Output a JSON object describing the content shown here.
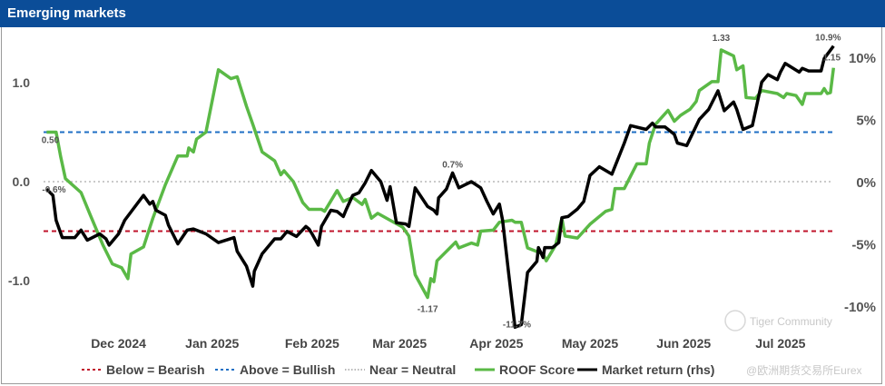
{
  "title": "Emerging markets",
  "watermark": {
    "line1": "Tiger Community",
    "line2": "@欧洲期货交易所Eurex"
  },
  "colors": {
    "roof": "#5ab946",
    "market": "#000000",
    "bullish": "#1f6fc5",
    "bearish": "#c0142b",
    "neutral": "#b8b8b8",
    "title_bg": "#0b4d98"
  },
  "chart_data": {
    "type": "line",
    "title": "Emerging markets",
    "x_unit": "days since start (early Nov 2024)",
    "x_ticks": [
      {
        "label": "Dec 2024",
        "x": 24
      },
      {
        "label": "Jan 2025",
        "x": 54
      },
      {
        "label": "Feb 2025",
        "x": 86
      },
      {
        "label": "Mar 2025",
        "x": 114
      },
      {
        "label": "Apr 2025",
        "x": 145
      },
      {
        "label": "May 2025",
        "x": 175
      },
      {
        "label": "Jun 2025",
        "x": 205
      },
      {
        "label": "Jul 2025",
        "x": 236
      }
    ],
    "xlim": [
      0,
      253
    ],
    "left_axis": {
      "ylim": [
        -1.5,
        1.45
      ],
      "ticks": [
        {
          "v": 1.0,
          "label": "1.0"
        },
        {
          "v": 0.0,
          "label": "0.0"
        },
        {
          "v": -1.0,
          "label": "-1.0"
        }
      ]
    },
    "right_axis": {
      "ylim": [
        -11.7,
        10.9
      ],
      "unit": "%",
      "ticks": [
        {
          "v": 10,
          "label": "10%"
        },
        {
          "v": 5,
          "label": "5%"
        },
        {
          "v": 0,
          "label": "0%"
        },
        {
          "v": -5,
          "label": "-5%"
        },
        {
          "v": -10,
          "label": "-10%"
        }
      ]
    },
    "reference_lines": [
      {
        "name": "Below = Bearish",
        "value": -0.5,
        "style": "dashed"
      },
      {
        "name": "Above = Bullish",
        "value": 0.5,
        "style": "dashed"
      },
      {
        "name": "Near = Neutral",
        "value": 0.0,
        "style": "dotted"
      }
    ],
    "series": [
      {
        "name": "ROOF Score",
        "axis": "left",
        "points": [
          [
            1,
            0.5
          ],
          [
            4,
            0.5
          ],
          [
            5.5,
            0.25
          ],
          [
            7,
            0.03
          ],
          [
            12,
            -0.11
          ],
          [
            15,
            -0.34
          ],
          [
            19,
            -0.64
          ],
          [
            22,
            -0.83
          ],
          [
            25,
            -0.87
          ],
          [
            27,
            -0.98
          ],
          [
            28,
            -0.73
          ],
          [
            32,
            -0.66
          ],
          [
            35,
            -0.37
          ],
          [
            39,
            -0.03
          ],
          [
            43,
            0.26
          ],
          [
            46,
            0.26
          ],
          [
            46.5,
            0.34
          ],
          [
            48,
            0.3
          ],
          [
            49,
            0.43
          ],
          [
            52,
            0.5
          ],
          [
            56,
            1.13
          ],
          [
            60,
            1.04
          ],
          [
            62,
            1.06
          ],
          [
            65,
            0.76
          ],
          [
            67,
            0.58
          ],
          [
            70,
            0.3
          ],
          [
            74,
            0.21
          ],
          [
            76,
            0.07
          ],
          [
            77,
            0.11
          ],
          [
            80,
            0.0
          ],
          [
            83,
            -0.21
          ],
          [
            85,
            -0.28
          ],
          [
            89,
            -0.28
          ],
          [
            90,
            -0.3
          ],
          [
            94,
            -0.09
          ],
          [
            96,
            -0.2
          ],
          [
            99,
            -0.16
          ],
          [
            102,
            -0.23
          ],
          [
            103,
            -0.18
          ],
          [
            105,
            -0.37
          ],
          [
            107,
            -0.32
          ],
          [
            111,
            -0.39
          ],
          [
            115,
            -0.46
          ],
          [
            117,
            -0.55
          ],
          [
            119,
            -0.94
          ],
          [
            123,
            -1.17
          ],
          [
            124,
            -0.98
          ],
          [
            125,
            -1.01
          ],
          [
            126,
            -0.8
          ],
          [
            132,
            -0.61
          ],
          [
            133,
            -0.67
          ],
          [
            137,
            -0.62
          ],
          [
            139,
            -0.64
          ],
          [
            140,
            -0.5
          ],
          [
            144,
            -0.49
          ],
          [
            146,
            -0.41
          ],
          [
            150,
            -0.39
          ],
          [
            151,
            -0.41
          ],
          [
            153,
            -0.41
          ],
          [
            155,
            -0.67
          ],
          [
            160,
            -0.73
          ],
          [
            161,
            -0.8
          ],
          [
            164,
            -0.64
          ],
          [
            166,
            -0.37
          ],
          [
            167,
            -0.55
          ],
          [
            171,
            -0.57
          ],
          [
            175,
            -0.43
          ],
          [
            180,
            -0.3
          ],
          [
            182,
            -0.28
          ],
          [
            183,
            -0.07
          ],
          [
            186,
            -0.07
          ],
          [
            190,
            0.18
          ],
          [
            193,
            0.18
          ],
          [
            194,
            0.39
          ],
          [
            196,
            0.58
          ],
          [
            200,
            0.72
          ],
          [
            202,
            0.61
          ],
          [
            204,
            0.67
          ],
          [
            207,
            0.73
          ],
          [
            209,
            0.81
          ],
          [
            210,
            0.92
          ],
          [
            214,
            1.01
          ],
          [
            216,
            1.01
          ],
          [
            217,
            1.33
          ],
          [
            221,
            1.27
          ],
          [
            222,
            1.13
          ],
          [
            224,
            1.17
          ],
          [
            225,
            0.85
          ],
          [
            228,
            0.84
          ],
          [
            230,
            0.92
          ],
          [
            235,
            0.89
          ],
          [
            237,
            0.85
          ],
          [
            238,
            0.89
          ],
          [
            241,
            0.87
          ],
          [
            243,
            0.78
          ],
          [
            244,
            0.89
          ],
          [
            249,
            0.89
          ],
          [
            250,
            0.94
          ],
          [
            251,
            0.89
          ],
          [
            252,
            0.9
          ],
          [
            253,
            1.15
          ]
        ]
      },
      {
        "name": "Market return (rhs)",
        "axis": "right",
        "points": [
          [
            1,
            -0.6
          ],
          [
            3,
            -1.1
          ],
          [
            4,
            -3.1
          ],
          [
            6,
            -4.5
          ],
          [
            10,
            -4.5
          ],
          [
            12,
            -3.9
          ],
          [
            14,
            -4.7
          ],
          [
            18,
            -4.2
          ],
          [
            20,
            -4.6
          ],
          [
            21,
            -5.1
          ],
          [
            24,
            -4.2
          ],
          [
            26,
            -3.1
          ],
          [
            32,
            -1.1
          ],
          [
            34,
            -1.8
          ],
          [
            35,
            -1.6
          ],
          [
            36,
            -2.3
          ],
          [
            39,
            -2.7
          ],
          [
            40,
            -3.5
          ],
          [
            43,
            -5.0
          ],
          [
            46,
            -3.9
          ],
          [
            48,
            -3.8
          ],
          [
            52,
            -4.2
          ],
          [
            56,
            -4.9
          ],
          [
            61,
            -4.5
          ],
          [
            62,
            -5.6
          ],
          [
            65,
            -6.8
          ],
          [
            67,
            -8.4
          ],
          [
            67.5,
            -7.2
          ],
          [
            70,
            -5.8
          ],
          [
            74,
            -4.6
          ],
          [
            76,
            -4.6
          ],
          [
            78,
            -4.0
          ],
          [
            81,
            -4.4
          ],
          [
            84,
            -3.6
          ],
          [
            85,
            -3.8
          ],
          [
            86,
            -4.2
          ],
          [
            88,
            -5.1
          ],
          [
            89,
            -3.6
          ],
          [
            92,
            -2.3
          ],
          [
            94,
            -2.4
          ],
          [
            96,
            -2.8
          ],
          [
            97,
            -2.2
          ],
          [
            99,
            -1.1
          ],
          [
            101,
            -0.9
          ],
          [
            103,
            -0.1
          ],
          [
            105,
            0.9
          ],
          [
            108,
            0.0
          ],
          [
            110,
            -1.5
          ],
          [
            111,
            -0.4
          ],
          [
            113,
            -3.3
          ],
          [
            116,
            -3.4
          ],
          [
            117,
            -3.6
          ],
          [
            119,
            -0.5
          ],
          [
            123,
            -2.0
          ],
          [
            125,
            -2.3
          ],
          [
            126,
            -2.6
          ],
          [
            126.5,
            -1.3
          ],
          [
            129,
            -0.6
          ],
          [
            131,
            0.7
          ],
          [
            133,
            -0.5
          ],
          [
            137,
            0.0
          ],
          [
            140,
            -0.5
          ],
          [
            142,
            -1.6
          ],
          [
            144,
            -2.6
          ],
          [
            146,
            -1.8
          ],
          [
            147,
            -3.1
          ],
          [
            149,
            -7.5
          ],
          [
            151,
            -11.7
          ],
          [
            153,
            -11.5
          ],
          [
            155,
            -7.3
          ],
          [
            158,
            -6.4
          ],
          [
            158.5,
            -5.3
          ],
          [
            160,
            -6.1
          ],
          [
            160.5,
            -5.3
          ],
          [
            163,
            -5.3
          ],
          [
            165,
            -4.9
          ],
          [
            166,
            -2.9
          ],
          [
            168,
            -2.8
          ],
          [
            171,
            -2.2
          ],
          [
            173,
            -1.6
          ],
          [
            175,
            0.5
          ],
          [
            178,
            1.2
          ],
          [
            182,
            0.6
          ],
          [
            186,
            3.1
          ],
          [
            188,
            4.5
          ],
          [
            193,
            4.2
          ],
          [
            195,
            4.7
          ],
          [
            196,
            4.4
          ],
          [
            199,
            4.4
          ],
          [
            202,
            3.8
          ],
          [
            203,
            3.1
          ],
          [
            206,
            2.9
          ],
          [
            210,
            5.0
          ],
          [
            213,
            5.8
          ],
          [
            216,
            7.3
          ],
          [
            218,
            5.7
          ],
          [
            221,
            6.4
          ],
          [
            222,
            5.8
          ],
          [
            224,
            4.2
          ],
          [
            227,
            4.5
          ],
          [
            230,
            8.0
          ],
          [
            232,
            8.6
          ],
          [
            235,
            8.2
          ],
          [
            236,
            8.8
          ],
          [
            237.5,
            9.5
          ],
          [
            242,
            8.8
          ],
          [
            243,
            9.1
          ],
          [
            245,
            8.9
          ],
          [
            249,
            8.9
          ],
          [
            250,
            9.9
          ],
          [
            253,
            10.9
          ]
        ]
      }
    ],
    "annotations": [
      {
        "text": "0.50",
        "series": "ROOF Score",
        "x": 1,
        "y": 0.5
      },
      {
        "text": "-0.6%",
        "series": "Market return (rhs)",
        "x": 1,
        "y": -0.6
      },
      {
        "text": "1.33",
        "series": "ROOF Score",
        "x": 217,
        "y": 1.33
      },
      {
        "text": "-1.17",
        "series": "ROOF Score",
        "x": 123,
        "y": -1.17
      },
      {
        "text": "0.7%",
        "series": "Market return (rhs)",
        "x": 131,
        "y": 0.7
      },
      {
        "text": "-11.7%",
        "series": "Market return (rhs)",
        "x": 151,
        "y": -11.7
      },
      {
        "text": "10.9%",
        "series": "Market return (rhs)",
        "x": 253,
        "y": 10.9
      },
      {
        "text": "1.15",
        "series": "ROOF Score",
        "x": 253,
        "y": 1.15
      }
    ],
    "legend": {
      "placement": "bottom",
      "items": [
        "Below = Bearish",
        "Above = Bullish",
        "Near = Neutral",
        "ROOF Score",
        "Market return (rhs)"
      ]
    }
  }
}
